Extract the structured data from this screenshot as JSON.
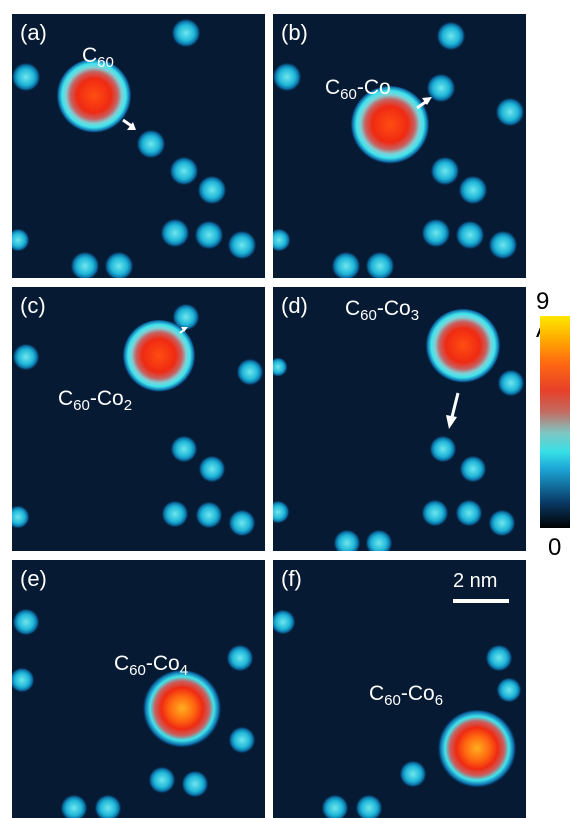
{
  "panels": [
    {
      "label": "(a)",
      "molecule": {
        "base": "C",
        "sub1": "60",
        "mid": "",
        "sub2": ""
      }
    },
    {
      "label": "(b)",
      "molecule": {
        "base": "C",
        "sub1": "60",
        "mid": "-Co",
        "sub2": ""
      }
    },
    {
      "label": "(c)",
      "molecule": {
        "base": "C",
        "sub1": "60",
        "mid": "-Co",
        "sub2": "2"
      }
    },
    {
      "label": "(d)",
      "molecule": {
        "base": "C",
        "sub1": "60",
        "mid": "-Co",
        "sub2": "3"
      }
    },
    {
      "label": "(e)",
      "molecule": {
        "base": "C",
        "sub1": "60",
        "mid": "-Co",
        "sub2": "4"
      }
    },
    {
      "label": "(f)",
      "molecule": {
        "base": "C",
        "sub1": "60",
        "mid": "-Co",
        "sub2": "6"
      }
    }
  ],
  "colorbar": {
    "max_label": "9 Å",
    "min_label": "0"
  },
  "scale_bar": {
    "label": "2 nm"
  },
  "colors": {
    "background": "#061a33",
    "adatom": "#37d6e6",
    "molecule_core": "#ff2a10",
    "molecule_rim": "#5fe8f0"
  }
}
